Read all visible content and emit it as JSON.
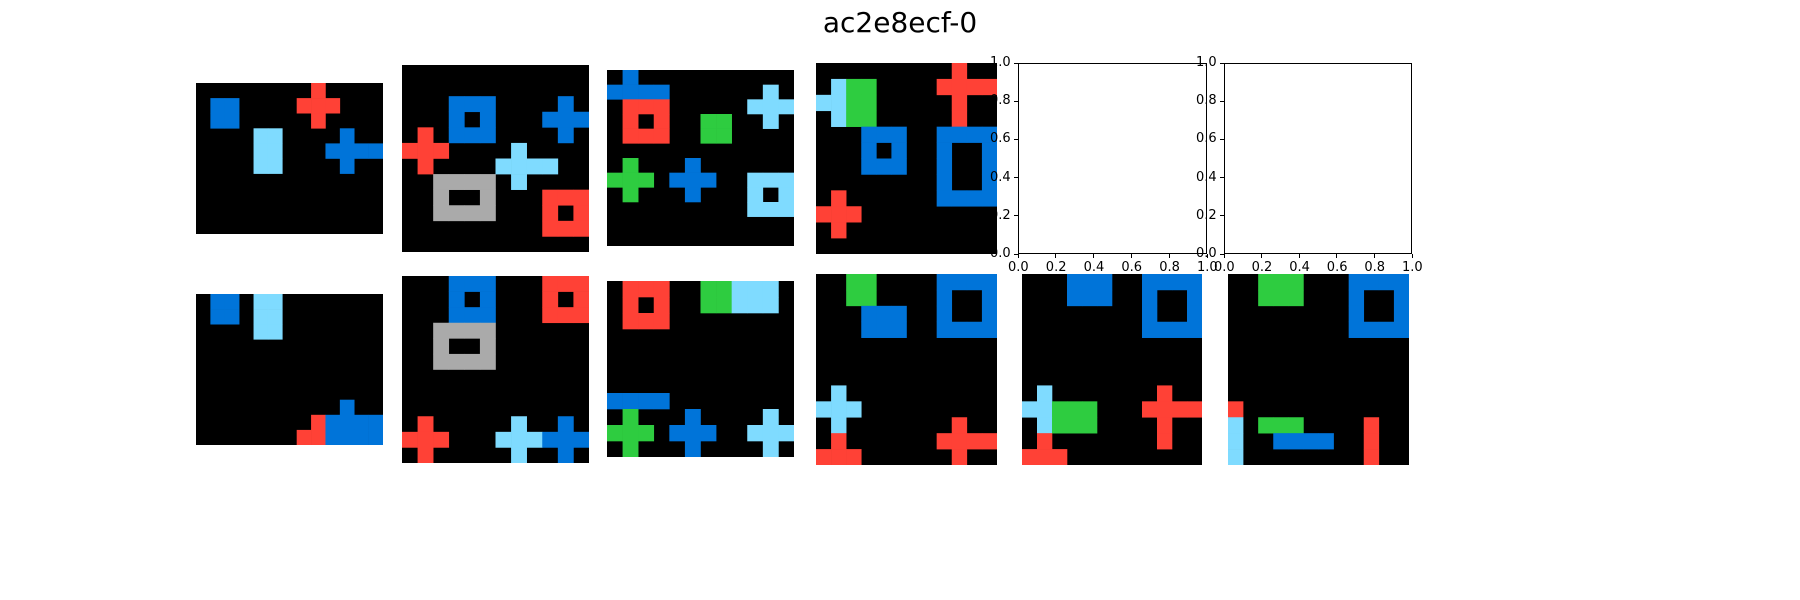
{
  "figure": {
    "title": "ac2e8ecf-0"
  },
  "palette": {
    "0": "#000000",
    "1": "#0074D9",
    "2": "#FF4136",
    "3": "#2ECC40",
    "5": "#AAAAAA",
    "8": "#7FDBFF"
  },
  "empty_axes": {
    "y_ticks": [
      "0.0",
      "0.2",
      "0.4",
      "0.6",
      "0.8",
      "1.0"
    ],
    "x_ticks": [
      "0.0",
      "0.2",
      "0.4",
      "0.6",
      "0.8",
      "1.0"
    ]
  },
  "panels": [
    {
      "id": "train-1-input",
      "grid": [
        "0000000000000",
        "0000000000000",
        "0000000000000",
        "0000000000000",
        "0000000000000",
        "0000000000000",
        "0000000000000",
        "0000000000000",
        "0000000000000",
        "0000000000000",
        "0000000000000",
        "0000000000000",
        "0000000000000",
        "0000000000000",
        "0000000000000",
        "0000000000000",
        "0000000000000",
        "0000000000000",
        "0000000000000",
        "0000000000000"
      ],
      "cells": [
        {
          "c": "1",
          "r": [
            1,
            1,
            3,
            3
          ],
          "hole": [
            2,
            2
          ]
        },
        {
          "c": "8",
          "r": [
            4,
            4,
            6,
            6
          ],
          "tall": true
        },
        {
          "c": "2",
          "plus": [
            8,
            2
          ]
        },
        {
          "c": "1",
          "plus": [
            11,
            5
          ],
          "arm": 1
        }
      ]
    }
  ]
}
